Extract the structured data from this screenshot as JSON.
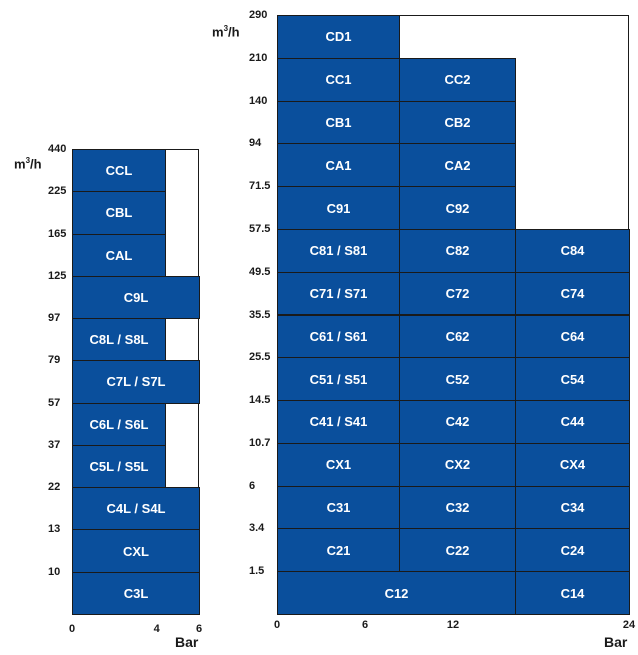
{
  "colors": {
    "fill": "#0a4f9c",
    "line": "#1a1a1a",
    "text_on_fill": "#ffffff"
  },
  "left": {
    "unit_base": "m",
    "unit_sup": "3",
    "unit_tail": "/h",
    "x_title": "Bar",
    "y_ticks": [
      "440",
      "225",
      "165",
      "125",
      "97",
      "79",
      "57",
      "37",
      "22",
      "13",
      "10"
    ],
    "x_ticks": [
      "0",
      "4",
      "6"
    ],
    "cells": [
      {
        "label": "CCL",
        "row": 0,
        "c0": 0,
        "c1": 1
      },
      {
        "label": "CBL",
        "row": 1,
        "c0": 0,
        "c1": 1
      },
      {
        "label": "CAL",
        "row": 2,
        "c0": 0,
        "c1": 1
      },
      {
        "label": "C9L",
        "row": 3,
        "c0": 0,
        "c1": 2
      },
      {
        "label": "C8L / S8L",
        "row": 4,
        "c0": 0,
        "c1": 1
      },
      {
        "label": "C7L / S7L",
        "row": 5,
        "c0": 0,
        "c1": 2
      },
      {
        "label": "C6L / S6L",
        "row": 6,
        "c0": 0,
        "c1": 1
      },
      {
        "label": "C5L / S5L",
        "row": 7,
        "c0": 0,
        "c1": 1
      },
      {
        "label": "C4L / S4L",
        "row": 8,
        "c0": 0,
        "c1": 2
      },
      {
        "label": "CXL",
        "row": 9,
        "c0": 0,
        "c1": 2
      },
      {
        "label": "C3L",
        "row": 10,
        "c0": 0,
        "c1": 2
      }
    ]
  },
  "right": {
    "unit_base": "m",
    "unit_sup": "3",
    "unit_tail": "/h",
    "x_title": "Bar",
    "y_ticks": [
      "290",
      "210",
      "140",
      "94",
      "71.5",
      "57.5",
      "49.5",
      "35.5",
      "25.5",
      "14.5",
      "10.7",
      "6",
      "3.4",
      "1.5"
    ],
    "x_ticks": [
      "0",
      "6",
      "12",
      "24"
    ],
    "cells": [
      {
        "label": "CD1",
        "row": 0,
        "c0": 0,
        "c1": 1
      },
      {
        "label": "CC1",
        "row": 1,
        "c0": 0,
        "c1": 1
      },
      {
        "label": "CC2",
        "row": 1,
        "c0": 1,
        "c1": 2
      },
      {
        "label": "CB1",
        "row": 2,
        "c0": 0,
        "c1": 1
      },
      {
        "label": "CB2",
        "row": 2,
        "c0": 1,
        "c1": 2
      },
      {
        "label": "CA1",
        "row": 3,
        "c0": 0,
        "c1": 1
      },
      {
        "label": "CA2",
        "row": 3,
        "c0": 1,
        "c1": 2
      },
      {
        "label": "C91",
        "row": 4,
        "c0": 0,
        "c1": 1
      },
      {
        "label": "C92",
        "row": 4,
        "c0": 1,
        "c1": 2
      },
      {
        "label": "C81 / S81",
        "row": 5,
        "c0": 0,
        "c1": 1
      },
      {
        "label": "C82",
        "row": 5,
        "c0": 1,
        "c1": 2
      },
      {
        "label": "C84",
        "row": 5,
        "c0": 2,
        "c1": 3
      },
      {
        "label": "C71 / S71",
        "row": 6,
        "c0": 0,
        "c1": 1
      },
      {
        "label": "C72",
        "row": 6,
        "c0": 1,
        "c1": 2
      },
      {
        "label": "C74",
        "row": 6,
        "c0": 2,
        "c1": 3
      },
      {
        "label": "C61 / S61",
        "row": 7,
        "c0": 0,
        "c1": 1
      },
      {
        "label": "C62",
        "row": 7,
        "c0": 1,
        "c1": 2
      },
      {
        "label": "C64",
        "row": 7,
        "c0": 2,
        "c1": 3
      },
      {
        "label": "C51 / S51",
        "row": 8,
        "c0": 0,
        "c1": 1
      },
      {
        "label": "C52",
        "row": 8,
        "c0": 1,
        "c1": 2
      },
      {
        "label": "C54",
        "row": 8,
        "c0": 2,
        "c1": 3
      },
      {
        "label": "C41 / S41",
        "row": 9,
        "c0": 0,
        "c1": 1
      },
      {
        "label": "C42",
        "row": 9,
        "c0": 1,
        "c1": 2
      },
      {
        "label": "C44",
        "row": 9,
        "c0": 2,
        "c1": 3
      },
      {
        "label": "CX1",
        "row": 10,
        "c0": 0,
        "c1": 1
      },
      {
        "label": "CX2",
        "row": 10,
        "c0": 1,
        "c1": 2
      },
      {
        "label": "CX4",
        "row": 10,
        "c0": 2,
        "c1": 3
      },
      {
        "label": "C31",
        "row": 11,
        "c0": 0,
        "c1": 1
      },
      {
        "label": "C32",
        "row": 11,
        "c0": 1,
        "c1": 2
      },
      {
        "label": "C34",
        "row": 11,
        "c0": 2,
        "c1": 3
      },
      {
        "label": "C21",
        "row": 12,
        "c0": 0,
        "c1": 1
      },
      {
        "label": "C22",
        "row": 12,
        "c0": 1,
        "c1": 2
      },
      {
        "label": "C24",
        "row": 12,
        "c0": 2,
        "c1": 3
      },
      {
        "label": "C12",
        "row": 13,
        "c0": 0,
        "c1": 2
      },
      {
        "label": "C14",
        "row": 13,
        "c0": 2,
        "c1": 3
      }
    ]
  }
}
